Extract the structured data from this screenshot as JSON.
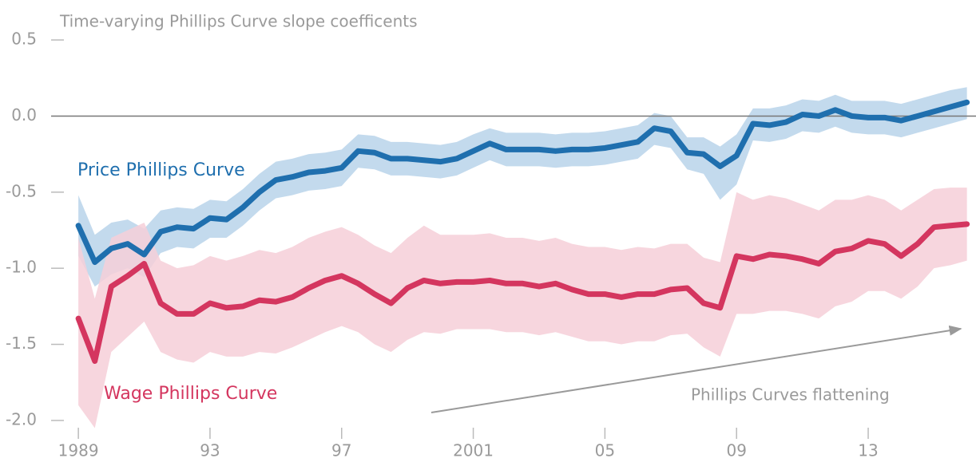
{
  "chart_data": {
    "type": "line",
    "title": "Time-varying Phillips Curve slope coefficents",
    "annotation": "Phillips Curves flattening",
    "x": [
      1989,
      1989.5,
      1990,
      1990.5,
      1991,
      1991.5,
      1992,
      1992.5,
      1993,
      1993.5,
      1994,
      1994.5,
      1995,
      1995.5,
      1996,
      1996.5,
      1997,
      1997.5,
      1998,
      1998.5,
      1999,
      1999.5,
      2000,
      2000.5,
      2001,
      2001.5,
      2002,
      2002.5,
      2003,
      2003.5,
      2004,
      2004.5,
      2005,
      2005.5,
      2006,
      2006.5,
      2007,
      2007.5,
      2008,
      2008.5,
      2009,
      2009.5,
      2010,
      2010.5,
      2011,
      2011.5,
      2012,
      2012.5,
      2013,
      2013.5,
      2014,
      2014.5,
      2015,
      2015.5,
      2016
    ],
    "series": [
      {
        "name": "Price Phillips Curve",
        "color": "#1f6fae",
        "band_color": "#b9d4ea",
        "values": [
          -0.72,
          -0.96,
          -0.87,
          -0.84,
          -0.91,
          -0.76,
          -0.73,
          -0.74,
          -0.67,
          -0.68,
          -0.6,
          -0.5,
          -0.42,
          -0.4,
          -0.37,
          -0.36,
          -0.34,
          -0.23,
          -0.24,
          -0.28,
          -0.28,
          -0.29,
          -0.3,
          -0.28,
          -0.23,
          -0.18,
          -0.22,
          -0.22,
          -0.22,
          -0.23,
          -0.22,
          -0.22,
          -0.21,
          -0.19,
          -0.17,
          -0.08,
          -0.1,
          -0.24,
          -0.25,
          -0.33,
          -0.26,
          -0.05,
          -0.06,
          -0.04,
          0.01,
          0.0,
          0.04,
          0.0,
          -0.01,
          -0.01,
          -0.03,
          0.0,
          0.03,
          0.06,
          0.09
        ],
        "upper": [
          -0.52,
          -0.78,
          -0.7,
          -0.68,
          -0.74,
          -0.62,
          -0.6,
          -0.61,
          -0.55,
          -0.56,
          -0.48,
          -0.38,
          -0.3,
          -0.28,
          -0.25,
          -0.24,
          -0.22,
          -0.12,
          -0.13,
          -0.17,
          -0.17,
          -0.18,
          -0.19,
          -0.17,
          -0.12,
          -0.08,
          -0.11,
          -0.11,
          -0.11,
          -0.12,
          -0.11,
          -0.11,
          -0.1,
          -0.08,
          -0.06,
          0.02,
          0.0,
          -0.14,
          -0.14,
          -0.2,
          -0.12,
          0.05,
          0.05,
          0.07,
          0.11,
          0.1,
          0.14,
          0.1,
          0.1,
          0.1,
          0.08,
          0.11,
          0.14,
          0.17,
          0.19
        ],
        "lower": [
          -0.92,
          -1.12,
          -1.04,
          -1.0,
          -1.06,
          -0.9,
          -0.86,
          -0.87,
          -0.8,
          -0.8,
          -0.72,
          -0.62,
          -0.54,
          -0.52,
          -0.49,
          -0.48,
          -0.46,
          -0.34,
          -0.35,
          -0.39,
          -0.39,
          -0.4,
          -0.41,
          -0.39,
          -0.34,
          -0.29,
          -0.33,
          -0.33,
          -0.33,
          -0.34,
          -0.33,
          -0.33,
          -0.32,
          -0.3,
          -0.28,
          -0.19,
          -0.21,
          -0.35,
          -0.38,
          -0.55,
          -0.45,
          -0.16,
          -0.17,
          -0.15,
          -0.1,
          -0.11,
          -0.07,
          -0.11,
          -0.12,
          -0.12,
          -0.14,
          -0.11,
          -0.08,
          -0.05,
          -0.02
        ]
      },
      {
        "name": "Wage Phillips Curve",
        "color": "#d4365f",
        "band_color": "#f6cfd8",
        "values": [
          -1.33,
          -1.61,
          -1.12,
          -1.05,
          -0.97,
          -1.23,
          -1.3,
          -1.3,
          -1.23,
          -1.26,
          -1.25,
          -1.21,
          -1.22,
          -1.19,
          -1.13,
          -1.08,
          -1.05,
          -1.1,
          -1.17,
          -1.23,
          -1.13,
          -1.08,
          -1.1,
          -1.09,
          -1.09,
          -1.08,
          -1.1,
          -1.1,
          -1.12,
          -1.1,
          -1.14,
          -1.17,
          -1.17,
          -1.19,
          -1.17,
          -1.17,
          -1.14,
          -1.13,
          -1.23,
          -1.26,
          -0.92,
          -0.94,
          -0.91,
          -0.92,
          -0.94,
          -0.97,
          -0.89,
          -0.87,
          -0.82,
          -0.84,
          -0.92,
          -0.84,
          -0.73,
          -0.72,
          -0.71
        ],
        "upper": [
          -0.8,
          -1.2,
          -0.8,
          -0.75,
          -0.7,
          -0.95,
          -1.0,
          -0.98,
          -0.92,
          -0.95,
          -0.92,
          -0.88,
          -0.9,
          -0.86,
          -0.8,
          -0.76,
          -0.73,
          -0.78,
          -0.85,
          -0.9,
          -0.8,
          -0.72,
          -0.78,
          -0.78,
          -0.78,
          -0.77,
          -0.8,
          -0.8,
          -0.82,
          -0.8,
          -0.84,
          -0.86,
          -0.86,
          -0.88,
          -0.86,
          -0.87,
          -0.84,
          -0.84,
          -0.93,
          -0.96,
          -0.5,
          -0.55,
          -0.52,
          -0.54,
          -0.58,
          -0.62,
          -0.55,
          -0.55,
          -0.52,
          -0.55,
          -0.62,
          -0.55,
          -0.48,
          -0.47,
          -0.47
        ],
        "lower": [
          -1.9,
          -2.05,
          -1.55,
          -1.45,
          -1.35,
          -1.55,
          -1.6,
          -1.62,
          -1.55,
          -1.58,
          -1.58,
          -1.55,
          -1.56,
          -1.52,
          -1.47,
          -1.42,
          -1.38,
          -1.42,
          -1.5,
          -1.55,
          -1.47,
          -1.42,
          -1.43,
          -1.4,
          -1.4,
          -1.4,
          -1.42,
          -1.42,
          -1.44,
          -1.42,
          -1.45,
          -1.48,
          -1.48,
          -1.5,
          -1.48,
          -1.48,
          -1.44,
          -1.43,
          -1.52,
          -1.58,
          -1.3,
          -1.3,
          -1.28,
          -1.28,
          -1.3,
          -1.33,
          -1.25,
          -1.22,
          -1.15,
          -1.15,
          -1.2,
          -1.12,
          -1.0,
          -0.98,
          -0.95
        ]
      }
    ],
    "xlim": [
      1988.9,
      2016.3
    ],
    "xticks": [
      {
        "value": 1989,
        "label": "1989"
      },
      {
        "value": 1993,
        "label": "93"
      },
      {
        "value": 1997,
        "label": "97"
      },
      2001,
      {
        "value": 2005,
        "label": "05"
      },
      {
        "value": 2009,
        "label": "09"
      },
      {
        "value": 2013,
        "label": "13"
      }
    ],
    "ylim": [
      -2.1,
      0.6
    ],
    "yticks": [
      0.5,
      {
        "value": 0,
        "label": "0.0"
      },
      -0.5,
      {
        "value": -1,
        "label": "-1.0"
      },
      -1.5,
      {
        "value": -2,
        "label": "-2.0"
      }
    ]
  }
}
